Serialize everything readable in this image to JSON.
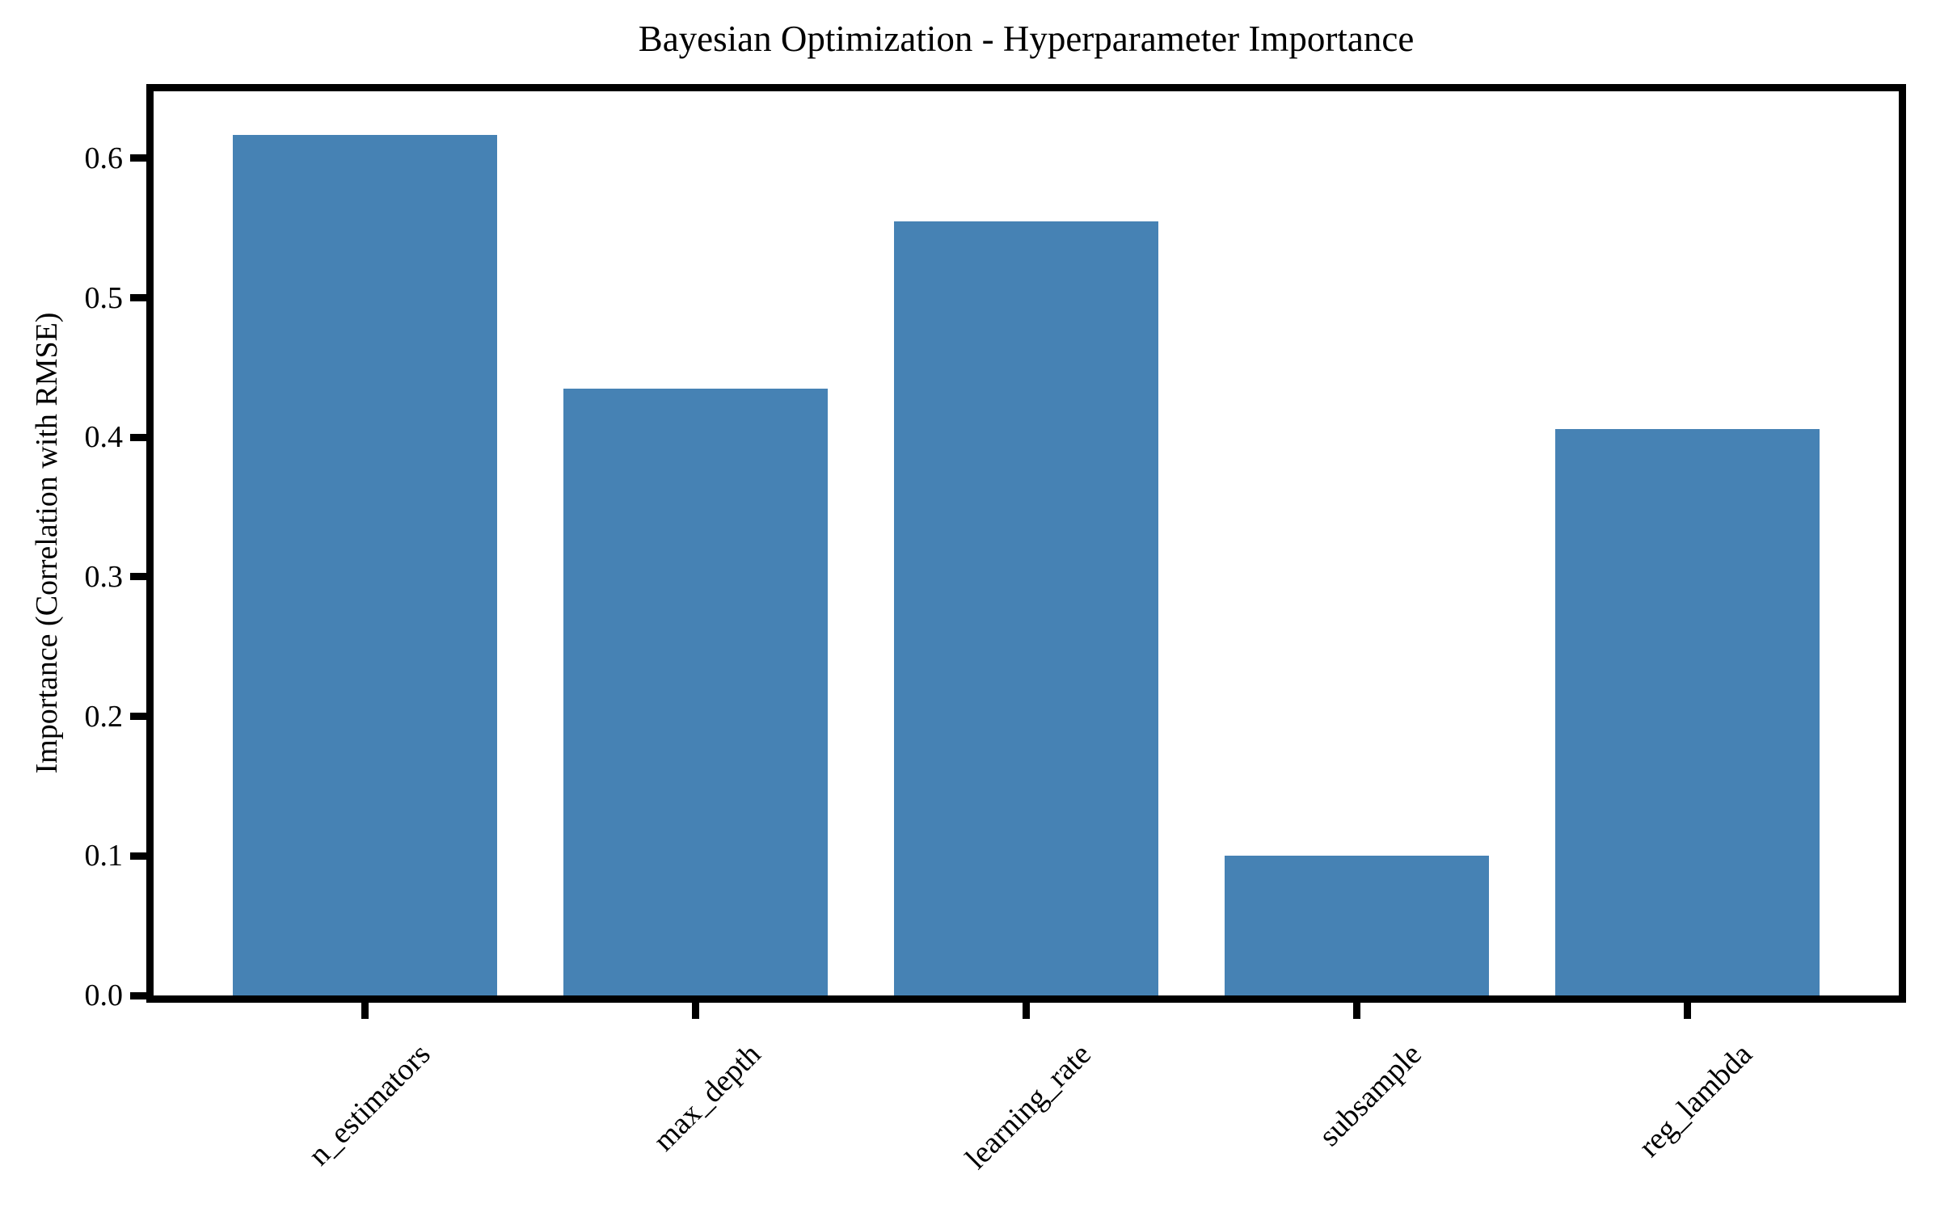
{
  "chart_data": {
    "type": "bar",
    "title": "Bayesian Optimization - Hyperparameter Importance",
    "xlabel": "",
    "ylabel": "Importance (Correlation with RMSE)",
    "categories": [
      "n_estimators",
      "max_depth",
      "learning_rate",
      "subsample",
      "reg_lambda"
    ],
    "values": [
      0.617,
      0.435,
      0.555,
      0.1,
      0.406
    ],
    "ytick_labels": [
      "0.0",
      "0.1",
      "0.2",
      "0.3",
      "0.4",
      "0.5",
      "0.6"
    ],
    "yticks": [
      0.0,
      0.1,
      0.2,
      0.3,
      0.4,
      0.5,
      0.6
    ],
    "ylim": [
      0,
      0.648
    ],
    "xlim_units": [
      -0.64,
      4.64
    ],
    "bar_width_units": 0.8,
    "x_tick_rotation_deg": 45,
    "grid": false,
    "legend": "none",
    "bar_color": "#4682B4",
    "axis_color": "#000000",
    "background_color": "#FFFFFF"
  }
}
